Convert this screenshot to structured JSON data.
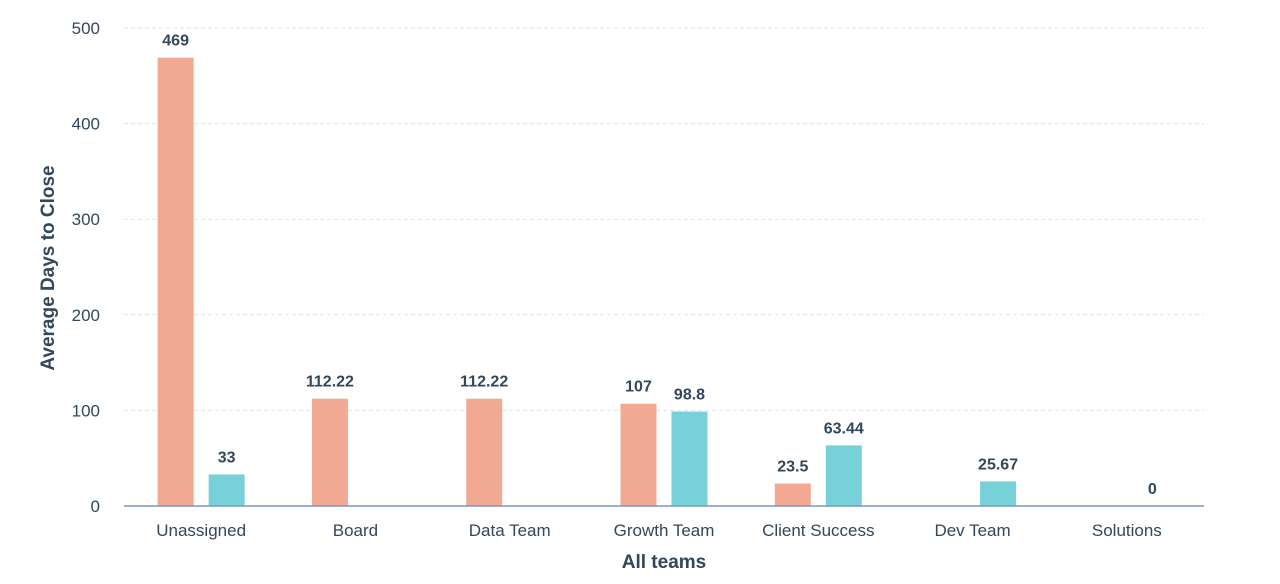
{
  "chart_data": {
    "type": "bar",
    "title": "",
    "xlabel": "All teams",
    "ylabel": "Average Days to Close",
    "ylim": [
      0,
      500
    ],
    "yticks": [
      0,
      100,
      200,
      300,
      400,
      500
    ],
    "grid": true,
    "categories": [
      "Unassigned",
      "Board",
      "Data Team",
      "Growth Team",
      "Client Success",
      "Dev Team",
      "Solutions"
    ],
    "series": [
      {
        "color": "#f2a993",
        "values": [
          469,
          112.22,
          112.22,
          107,
          23.5,
          null,
          null
        ],
        "labels": [
          "469",
          "112.22",
          "112.22",
          "107",
          "23.5",
          null,
          null
        ]
      },
      {
        "color": "#76d1d9",
        "values": [
          33,
          null,
          null,
          98.8,
          63.44,
          25.67,
          0
        ],
        "labels": [
          "33",
          null,
          null,
          "98.8",
          "63.44",
          "25.67",
          "0"
        ]
      }
    ]
  }
}
